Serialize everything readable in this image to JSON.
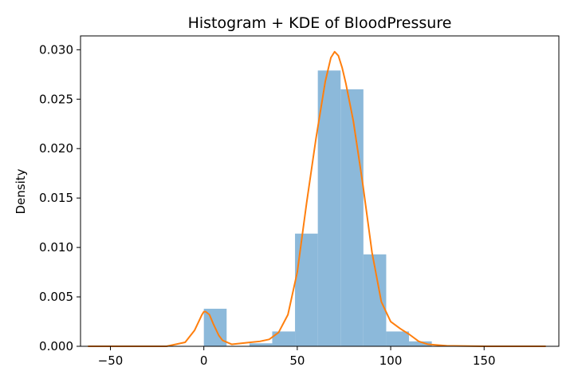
{
  "chart_data": {
    "type": "bar",
    "title": "Histogram + KDE of BloodPressure",
    "xlabel": "",
    "ylabel": "Density",
    "xlim": [
      -66,
      190
    ],
    "ylim": [
      0,
      0.0314
    ],
    "x_ticks": [
      {
        "value": -50,
        "label": "−50"
      },
      {
        "value": 0,
        "label": "0"
      },
      {
        "value": 50,
        "label": "50"
      },
      {
        "value": 100,
        "label": "100"
      },
      {
        "value": 150,
        "label": "150"
      }
    ],
    "y_ticks": [
      {
        "value": 0.0,
        "label": "0.000"
      },
      {
        "value": 0.005,
        "label": "0.005"
      },
      {
        "value": 0.01,
        "label": "0.010"
      },
      {
        "value": 0.015,
        "label": "0.015"
      },
      {
        "value": 0.02,
        "label": "0.020"
      },
      {
        "value": 0.025,
        "label": "0.025"
      },
      {
        "value": 0.03,
        "label": "0.030"
      }
    ],
    "grid": false,
    "series": [
      {
        "type": "histogram",
        "color": "#8cb9da",
        "bins": [
          {
            "x0": 0.0,
            "x1": 12.2,
            "density": 0.0038
          },
          {
            "x0": 12.2,
            "x1": 24.4,
            "density": 0.0
          },
          {
            "x0": 24.4,
            "x1": 36.6,
            "density": 0.0003
          },
          {
            "x0": 36.6,
            "x1": 48.8,
            "density": 0.0015
          },
          {
            "x0": 48.8,
            "x1": 61.0,
            "density": 0.0114
          },
          {
            "x0": 61.0,
            "x1": 73.2,
            "density": 0.0279
          },
          {
            "x0": 73.2,
            "x1": 85.4,
            "density": 0.026
          },
          {
            "x0": 85.4,
            "x1": 97.6,
            "density": 0.0093
          },
          {
            "x0": 97.6,
            "x1": 109.8,
            "density": 0.0015
          },
          {
            "x0": 109.8,
            "x1": 122.0,
            "density": 0.0005
          }
        ]
      },
      {
        "type": "line",
        "color": "#ff7f0e",
        "x": [
          -62,
          -40,
          -20,
          -10,
          -5,
          -3,
          -1,
          0,
          1,
          3,
          5,
          8,
          10,
          15,
          20,
          25,
          30,
          35,
          40,
          45,
          50,
          55,
          60,
          65,
          68,
          70,
          72,
          74,
          76,
          80,
          85,
          90,
          95,
          100,
          105,
          110,
          115,
          120,
          130,
          150,
          183
        ],
        "y": [
          0.0,
          0.0,
          0.0,
          0.0004,
          0.0016,
          0.0024,
          0.0032,
          0.0035,
          0.0035,
          0.0032,
          0.0023,
          0.0011,
          0.0006,
          0.0002,
          0.0003,
          0.0004,
          0.0005,
          0.0007,
          0.0014,
          0.0032,
          0.0075,
          0.0145,
          0.021,
          0.0268,
          0.0292,
          0.0298,
          0.0294,
          0.0282,
          0.0266,
          0.0228,
          0.0165,
          0.0095,
          0.0045,
          0.0025,
          0.0018,
          0.0012,
          0.0005,
          0.0002,
          5e-05,
          0.0,
          0.0
        ]
      }
    ]
  }
}
